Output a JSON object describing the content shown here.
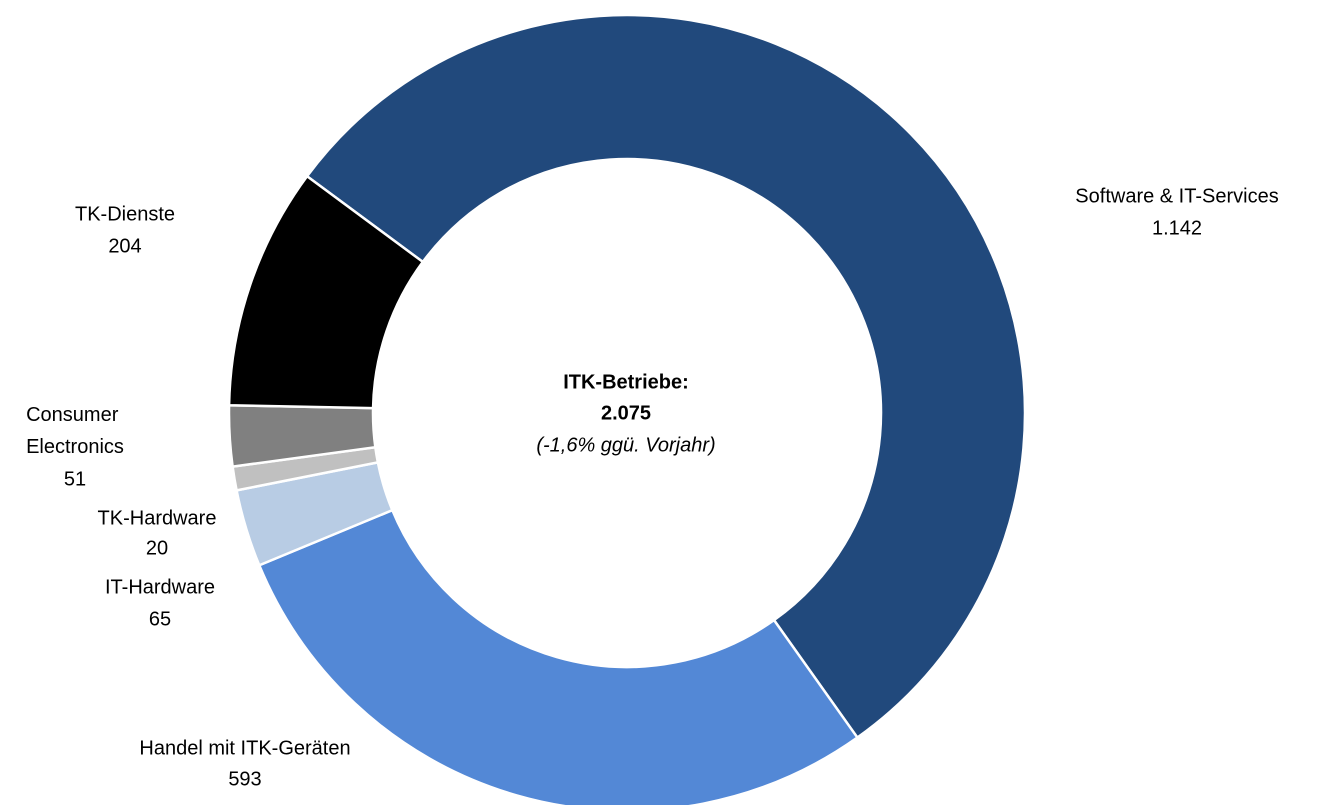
{
  "chart_data": {
    "type": "donut",
    "categories": [
      "Software & IT-Services",
      "Handel mit ITK-Geräten",
      "IT-Hardware",
      "TK-Hardware",
      "Consumer Electronics",
      "TK-Dienste"
    ],
    "values": [
      1142,
      593,
      65,
      20,
      51,
      204
    ],
    "value_labels": [
      "1.142",
      "593",
      "65",
      "20",
      "51",
      "204"
    ],
    "colors": [
      "#21497c",
      "#5388d6",
      "#b8cce4",
      "#c0c0c0",
      "#808080",
      "#000000"
    ],
    "center_text": [
      "ITK-Betriebe:",
      "2.075",
      "(-1,6% ggü. Vorjahr)"
    ]
  }
}
